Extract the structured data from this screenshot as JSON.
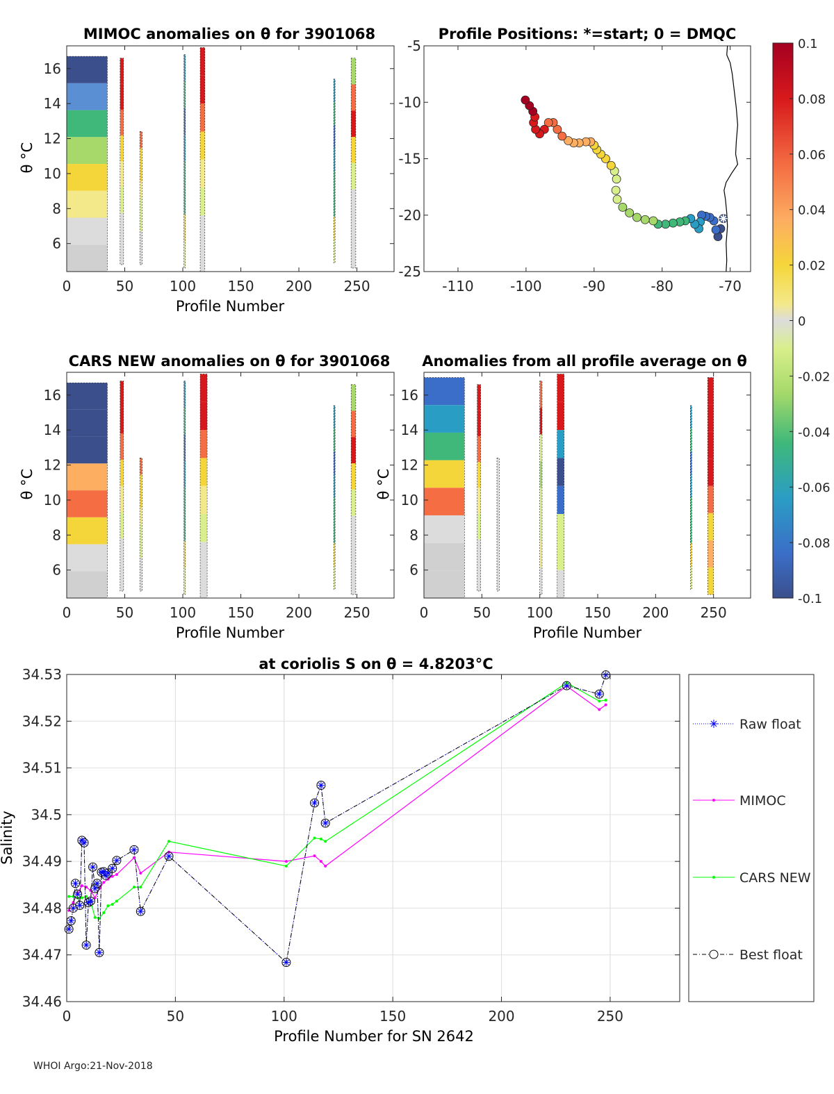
{
  "footer": "WHOI Argo:21-Nov-2018",
  "colors": {
    "mimoc": "#ff00ff",
    "cars": "#00ff00",
    "raw": "#0000ff",
    "best": "#000000",
    "grid": "#e0e0e0"
  },
  "chart_data": [
    {
      "id": "mimoc_anom",
      "type": "heatmap",
      "title": "MIMOC anomalies on θ  for 3901068",
      "xlabel": "Profile Number",
      "ylabel": "θ °C",
      "xlim": [
        0,
        282
      ],
      "ylim": [
        4.4,
        17.3
      ],
      "xticks": [
        0,
        50,
        100,
        150,
        200,
        250
      ],
      "yticks": [
        6,
        8,
        10,
        12,
        14,
        16
      ],
      "columns": [
        {
          "x0": 0,
          "x1": 35,
          "tmin": 4.4,
          "tmax": 16.7,
          "kind": "mixed"
        },
        {
          "x0": 46,
          "x1": 49,
          "tmin": 4.8,
          "tmax": 16.6,
          "kind": "red_top"
        },
        {
          "x0": 63,
          "x1": 65,
          "tmin": 4.8,
          "tmax": 12.4,
          "kind": "yellow"
        },
        {
          "x0": 101,
          "x1": 102,
          "tmin": 4.6,
          "tmax": 16.8,
          "kind": "thin"
        },
        {
          "x0": 115,
          "x1": 119,
          "tmin": 4.4,
          "tmax": 17.2,
          "kind": "red_top"
        },
        {
          "x0": 230,
          "x1": 231,
          "tmin": 4.9,
          "tmax": 15.4,
          "kind": "thin"
        },
        {
          "x0": 245,
          "x1": 249,
          "tmin": 4.6,
          "tmax": 16.6,
          "kind": "red_mid"
        }
      ]
    },
    {
      "id": "positions",
      "type": "scatter",
      "title": "Profile Positions: *=start; 0 = DMQC",
      "xlim": [
        -115,
        -67
      ],
      "ylim": [
        -25,
        -5
      ],
      "xticks": [
        -110,
        -100,
        -90,
        -80,
        -70
      ],
      "yticks": [
        -5,
        -10,
        -15,
        -20,
        -25
      ],
      "track": [
        [
          -71.0,
          -20.3
        ],
        [
          -71.4,
          -21.2
        ],
        [
          -71.8,
          -21.9
        ],
        [
          -72.1,
          -21.3
        ],
        [
          -72.4,
          -20.5
        ],
        [
          -73.0,
          -20.2
        ],
        [
          -73.6,
          -20.1
        ],
        [
          -74.2,
          -20.0
        ],
        [
          -74.4,
          -20.6
        ],
        [
          -74.6,
          -21.2
        ],
        [
          -75.2,
          -20.8
        ],
        [
          -75.8,
          -20.3
        ],
        [
          -76.6,
          -20.5
        ],
        [
          -77.4,
          -20.6
        ],
        [
          -78.4,
          -20.7
        ],
        [
          -79.5,
          -20.8
        ],
        [
          -80.6,
          -20.8
        ],
        [
          -81.3,
          -20.5
        ],
        [
          -82.5,
          -20.4
        ],
        [
          -83.7,
          -20.2
        ],
        [
          -84.8,
          -19.8
        ],
        [
          -85.8,
          -19.3
        ],
        [
          -86.6,
          -18.6
        ],
        [
          -86.8,
          -17.8
        ],
        [
          -86.7,
          -16.8
        ],
        [
          -87.0,
          -16.1
        ],
        [
          -87.5,
          -15.6
        ],
        [
          -88.3,
          -15.0
        ],
        [
          -89.0,
          -14.6
        ],
        [
          -89.6,
          -14.2
        ],
        [
          -90.0,
          -13.8
        ],
        [
          -90.5,
          -13.5
        ],
        [
          -91.2,
          -13.5
        ],
        [
          -92.2,
          -13.6
        ],
        [
          -93.0,
          -13.6
        ],
        [
          -93.8,
          -13.4
        ],
        [
          -94.7,
          -13.0
        ],
        [
          -95.4,
          -12.4
        ],
        [
          -96.0,
          -11.8
        ],
        [
          -96.7,
          -11.8
        ],
        [
          -97.3,
          -12.4
        ],
        [
          -98.0,
          -12.8
        ],
        [
          -98.6,
          -12.4
        ],
        [
          -98.9,
          -11.8
        ],
        [
          -98.7,
          -11.3
        ],
        [
          -99.0,
          -10.8
        ],
        [
          -99.5,
          -10.3
        ],
        [
          -100.1,
          -9.8
        ]
      ],
      "coast": [
        [
          -70.4,
          -5.0
        ],
        [
          -70.5,
          -5.8
        ],
        [
          -70.0,
          -6.5
        ],
        [
          -69.7,
          -7.5
        ],
        [
          -69.4,
          -9.0
        ],
        [
          -69.1,
          -10.5
        ],
        [
          -68.9,
          -12.0
        ],
        [
          -69.1,
          -13.5
        ],
        [
          -69.2,
          -14.6
        ],
        [
          -68.9,
          -15.5
        ],
        [
          -69.8,
          -16.3
        ],
        [
          -70.6,
          -17.1
        ],
        [
          -70.9,
          -17.8
        ],
        [
          -70.7,
          -18.6
        ],
        [
          -70.5,
          -19.8
        ],
        [
          -70.4,
          -21.0
        ],
        [
          -70.6,
          -22.5
        ],
        [
          -70.5,
          -24.0
        ],
        [
          -70.6,
          -25.0
        ]
      ]
    },
    {
      "id": "colorbar",
      "type": "heatmap",
      "tick_labels": [
        "0.1",
        "0.08",
        "0.06",
        "0.04",
        "0.02",
        "0",
        "-0.02",
        "-0.04",
        "-0.06",
        "-0.08",
        "-0.1"
      ],
      "range": [
        -0.1,
        0.1
      ]
    },
    {
      "id": "cars_anom",
      "type": "heatmap",
      "title": "CARS NEW anomalies on θ for 3901068",
      "xlabel": "Profile Number",
      "ylabel": "θ °C",
      "xlim": [
        0,
        282
      ],
      "ylim": [
        4.4,
        17.3
      ],
      "xticks": [
        0,
        50,
        100,
        150,
        200,
        250
      ],
      "yticks": [
        6,
        8,
        10,
        12,
        14,
        16
      ],
      "columns": [
        {
          "x0": 0,
          "x1": 35,
          "tmin": 4.4,
          "tmax": 16.7,
          "kind": "cars_mixed"
        },
        {
          "x0": 46,
          "x1": 49,
          "tmin": 4.8,
          "tmax": 16.8,
          "kind": "red_top"
        },
        {
          "x0": 63,
          "x1": 65,
          "tmin": 4.8,
          "tmax": 12.4,
          "kind": "yellow"
        },
        {
          "x0": 101,
          "x1": 102,
          "tmin": 4.6,
          "tmax": 16.8,
          "kind": "thin"
        },
        {
          "x0": 115,
          "x1": 121,
          "tmin": 4.4,
          "tmax": 17.2,
          "kind": "red_top"
        },
        {
          "x0": 230,
          "x1": 231,
          "tmin": 4.9,
          "tmax": 15.4,
          "kind": "thin"
        },
        {
          "x0": 245,
          "x1": 249,
          "tmin": 4.6,
          "tmax": 16.6,
          "kind": "red_mid"
        }
      ]
    },
    {
      "id": "profile_avg_anom",
      "type": "heatmap",
      "title": "Anomalies from all profile average on θ",
      "xlabel": "Profile Number",
      "ylabel": "θ °C",
      "xlim": [
        0,
        282
      ],
      "ylim": [
        4.4,
        17.3
      ],
      "xticks": [
        0,
        50,
        100,
        150,
        200,
        250
      ],
      "yticks": [
        6,
        8,
        10,
        12,
        14,
        16
      ],
      "columns": [
        {
          "x0": 0,
          "x1": 35,
          "tmin": 4.4,
          "tmax": 17.0,
          "kind": "avg_mixed"
        },
        {
          "x0": 46,
          "x1": 49,
          "tmin": 4.8,
          "tmax": 16.6,
          "kind": "red_top"
        },
        {
          "x0": 63,
          "x1": 65,
          "tmin": 4.8,
          "tmax": 12.4,
          "kind": "grey"
        },
        {
          "x0": 100,
          "x1": 102,
          "tmin": 4.6,
          "tmax": 16.8,
          "kind": "green_low"
        },
        {
          "x0": 115,
          "x1": 121,
          "tmin": 4.4,
          "tmax": 17.2,
          "kind": "blue_mid"
        },
        {
          "x0": 230,
          "x1": 231,
          "tmin": 4.9,
          "tmax": 15.4,
          "kind": "thin"
        },
        {
          "x0": 245,
          "x1": 250,
          "tmin": 4.6,
          "tmax": 17.0,
          "kind": "red_full"
        }
      ]
    },
    {
      "id": "salinity",
      "type": "line",
      "title": "at coriolis S on θ = 4.8203°C",
      "xlabel": "Profile Number for SN 2642",
      "ylabel": "Salinity",
      "xlim": [
        0,
        282
      ],
      "ylim": [
        34.46,
        34.53
      ],
      "xticks": [
        0,
        50,
        100,
        150,
        200,
        250
      ],
      "yticks": [
        34.46,
        34.47,
        34.48,
        34.49,
        34.5,
        34.51,
        34.52,
        34.53
      ],
      "ytick_labels": [
        "34.46",
        "34.47",
        "34.48",
        "34.49",
        "34.5",
        "34.51",
        "34.52",
        "34.53"
      ],
      "grid": true,
      "legend_position": "right",
      "series": [
        {
          "name": "Raw float",
          "style": "dotted-star",
          "points": [
            [
              1,
              34.4755
            ],
            [
              2,
              34.4773
            ],
            [
              3,
              34.48
            ],
            [
              4,
              34.4853
            ],
            [
              5,
              34.483
            ],
            [
              6,
              34.4806
            ],
            [
              7,
              34.4945
            ],
            [
              8,
              34.494
            ],
            [
              9,
              34.4721
            ],
            [
              10,
              34.4812
            ],
            [
              11,
              34.4815
            ],
            [
              12,
              34.4888
            ],
            [
              13,
              34.4842
            ],
            [
              14,
              34.4853
            ],
            [
              15,
              34.4705
            ],
            [
              16,
              34.4877
            ],
            [
              17,
              34.4878
            ],
            [
              18,
              34.487
            ],
            [
              19,
              34.4875
            ],
            [
              21,
              34.4885
            ],
            [
              23,
              34.4902
            ],
            [
              31,
              34.4925
            ],
            [
              34,
              34.4793
            ],
            [
              47,
              34.4911
            ],
            [
              101,
              34.4684
            ],
            [
              114,
              34.5025
            ],
            [
              117,
              34.5063
            ],
            [
              119,
              34.4982
            ],
            [
              230,
              34.5276
            ],
            [
              245,
              34.5258
            ],
            [
              248,
              34.5299
            ]
          ]
        },
        {
          "name": "MIMOC",
          "style": "solid-dot",
          "points": [
            [
              1,
              34.4795
            ],
            [
              3,
              34.4812
            ],
            [
              5,
              34.4832
            ],
            [
              7,
              34.4848
            ],
            [
              9,
              34.4845
            ],
            [
              11,
              34.4838
            ],
            [
              13,
              34.4822
            ],
            [
              15,
              34.4842
            ],
            [
              17,
              34.4855
            ],
            [
              19,
              34.4862
            ],
            [
              21,
              34.4868
            ],
            [
              23,
              34.4872
            ],
            [
              31,
              34.4908
            ],
            [
              34,
              34.4875
            ],
            [
              47,
              34.492
            ],
            [
              101,
              34.49
            ],
            [
              114,
              34.4912
            ],
            [
              117,
              34.49
            ],
            [
              119,
              34.489
            ],
            [
              230,
              34.5275
            ],
            [
              245,
              34.5225
            ],
            [
              248,
              34.5235
            ]
          ]
        },
        {
          "name": "CARS NEW",
          "style": "solid-dot",
          "points": [
            [
              1,
              34.4825
            ],
            [
              3,
              34.4825
            ],
            [
              5,
              34.4822
            ],
            [
              7,
              34.4822
            ],
            [
              9,
              34.4825
            ],
            [
              11,
              34.4815
            ],
            [
              13,
              34.478
            ],
            [
              15,
              34.4778
            ],
            [
              17,
              34.479
            ],
            [
              19,
              34.4805
            ],
            [
              21,
              34.4808
            ],
            [
              23,
              34.4815
            ],
            [
              31,
              34.4845
            ],
            [
              34,
              34.4845
            ],
            [
              47,
              34.4943
            ],
            [
              101,
              34.489
            ],
            [
              114,
              34.495
            ],
            [
              117,
              34.4948
            ],
            [
              119,
              34.4943
            ],
            [
              230,
              34.5282
            ],
            [
              245,
              34.5243
            ],
            [
              248,
              34.5245
            ]
          ]
        },
        {
          "name": "Best float",
          "style": "dashdot-circle",
          "points": [
            [
              1,
              34.4755
            ],
            [
              2,
              34.4773
            ],
            [
              3,
              34.48
            ],
            [
              4,
              34.4853
            ],
            [
              5,
              34.483
            ],
            [
              6,
              34.4806
            ],
            [
              7,
              34.4945
            ],
            [
              8,
              34.494
            ],
            [
              9,
              34.4721
            ],
            [
              10,
              34.4812
            ],
            [
              11,
              34.4815
            ],
            [
              12,
              34.4888
            ],
            [
              13,
              34.4842
            ],
            [
              14,
              34.4853
            ],
            [
              15,
              34.4705
            ],
            [
              16,
              34.4877
            ],
            [
              17,
              34.4878
            ],
            [
              18,
              34.487
            ],
            [
              19,
              34.4875
            ],
            [
              21,
              34.4885
            ],
            [
              23,
              34.4902
            ],
            [
              31,
              34.4925
            ],
            [
              34,
              34.4793
            ],
            [
              47,
              34.4911
            ],
            [
              101,
              34.4684
            ],
            [
              114,
              34.5025
            ],
            [
              117,
              34.5063
            ],
            [
              119,
              34.4982
            ],
            [
              230,
              34.5276
            ],
            [
              245,
              34.5258
            ],
            [
              248,
              34.5299
            ]
          ]
        }
      ]
    }
  ]
}
